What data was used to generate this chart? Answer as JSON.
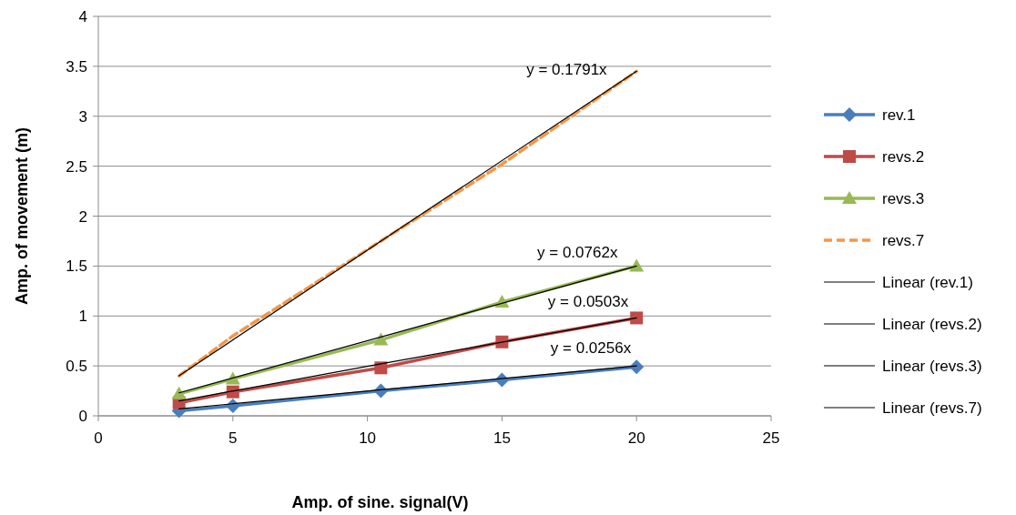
{
  "chart_data": {
    "type": "line",
    "xlabel": "Amp. of sine. signal(V)",
    "ylabel": "Amp. of movement (m)",
    "x": [
      3,
      5,
      10.5,
      15,
      20
    ],
    "series": [
      {
        "name": "rev.1",
        "color": "#4a7ebb",
        "values": [
          0.05,
          0.1,
          0.25,
          0.36,
          0.49
        ],
        "marker": "diamond",
        "line_style": "solid"
      },
      {
        "name": "revs.2",
        "color": "#be4b48",
        "values": [
          0.13,
          0.24,
          0.48,
          0.74,
          0.98
        ],
        "marker": "square",
        "line_style": "solid"
      },
      {
        "name": "revs.3",
        "color": "#98b954",
        "values": [
          0.22,
          0.37,
          0.76,
          1.14,
          1.5
        ],
        "marker": "triangle",
        "line_style": "solid"
      },
      {
        "name": "revs.7",
        "color": "#f79646",
        "values": [
          0.4,
          0.8,
          1.75,
          2.52,
          3.45
        ],
        "marker": "none",
        "line_style": "dashed"
      },
      {
        "name": "Linear (rev.1)",
        "color": "#000000",
        "x": [
          3,
          10.5,
          20
        ],
        "values": [
          0.07,
          0.26,
          0.5
        ],
        "marker": "none",
        "line_style": "solid"
      },
      {
        "name": "Linear (revs.2)",
        "color": "#000000",
        "x": [
          3,
          10.5,
          20
        ],
        "values": [
          0.15,
          0.52,
          0.98
        ],
        "marker": "none",
        "line_style": "solid"
      },
      {
        "name": "Linear (revs.3)",
        "color": "#000000",
        "x": [
          3,
          10.5,
          20
        ],
        "values": [
          0.23,
          0.79,
          1.5
        ],
        "marker": "none",
        "line_style": "solid"
      },
      {
        "name": "Linear (revs.7)",
        "color": "#000000",
        "x": [
          3,
          10.5,
          20
        ],
        "values": [
          0.4,
          1.75,
          3.45
        ],
        "marker": "none",
        "line_style": "solid"
      }
    ],
    "annotations": [
      {
        "text": "y = 0.0256x",
        "x": 20,
        "y": 0.5
      },
      {
        "text": "y = 0.0503x",
        "x": 19.9,
        "y": 0.97
      },
      {
        "text": "y = 0.0762x",
        "x": 19.5,
        "y": 1.46
      },
      {
        "text": "y = 0.1791x",
        "x": 19.1,
        "y": 3.29
      }
    ],
    "xlim": [
      0,
      25
    ],
    "xticks": [
      0,
      5,
      10,
      15,
      20,
      25
    ],
    "ylim": [
      0,
      4
    ],
    "yticks": [
      0,
      0.5,
      1,
      1.5,
      2,
      2.5,
      3,
      3.5,
      4
    ],
    "grid": "y",
    "legend": "right"
  }
}
